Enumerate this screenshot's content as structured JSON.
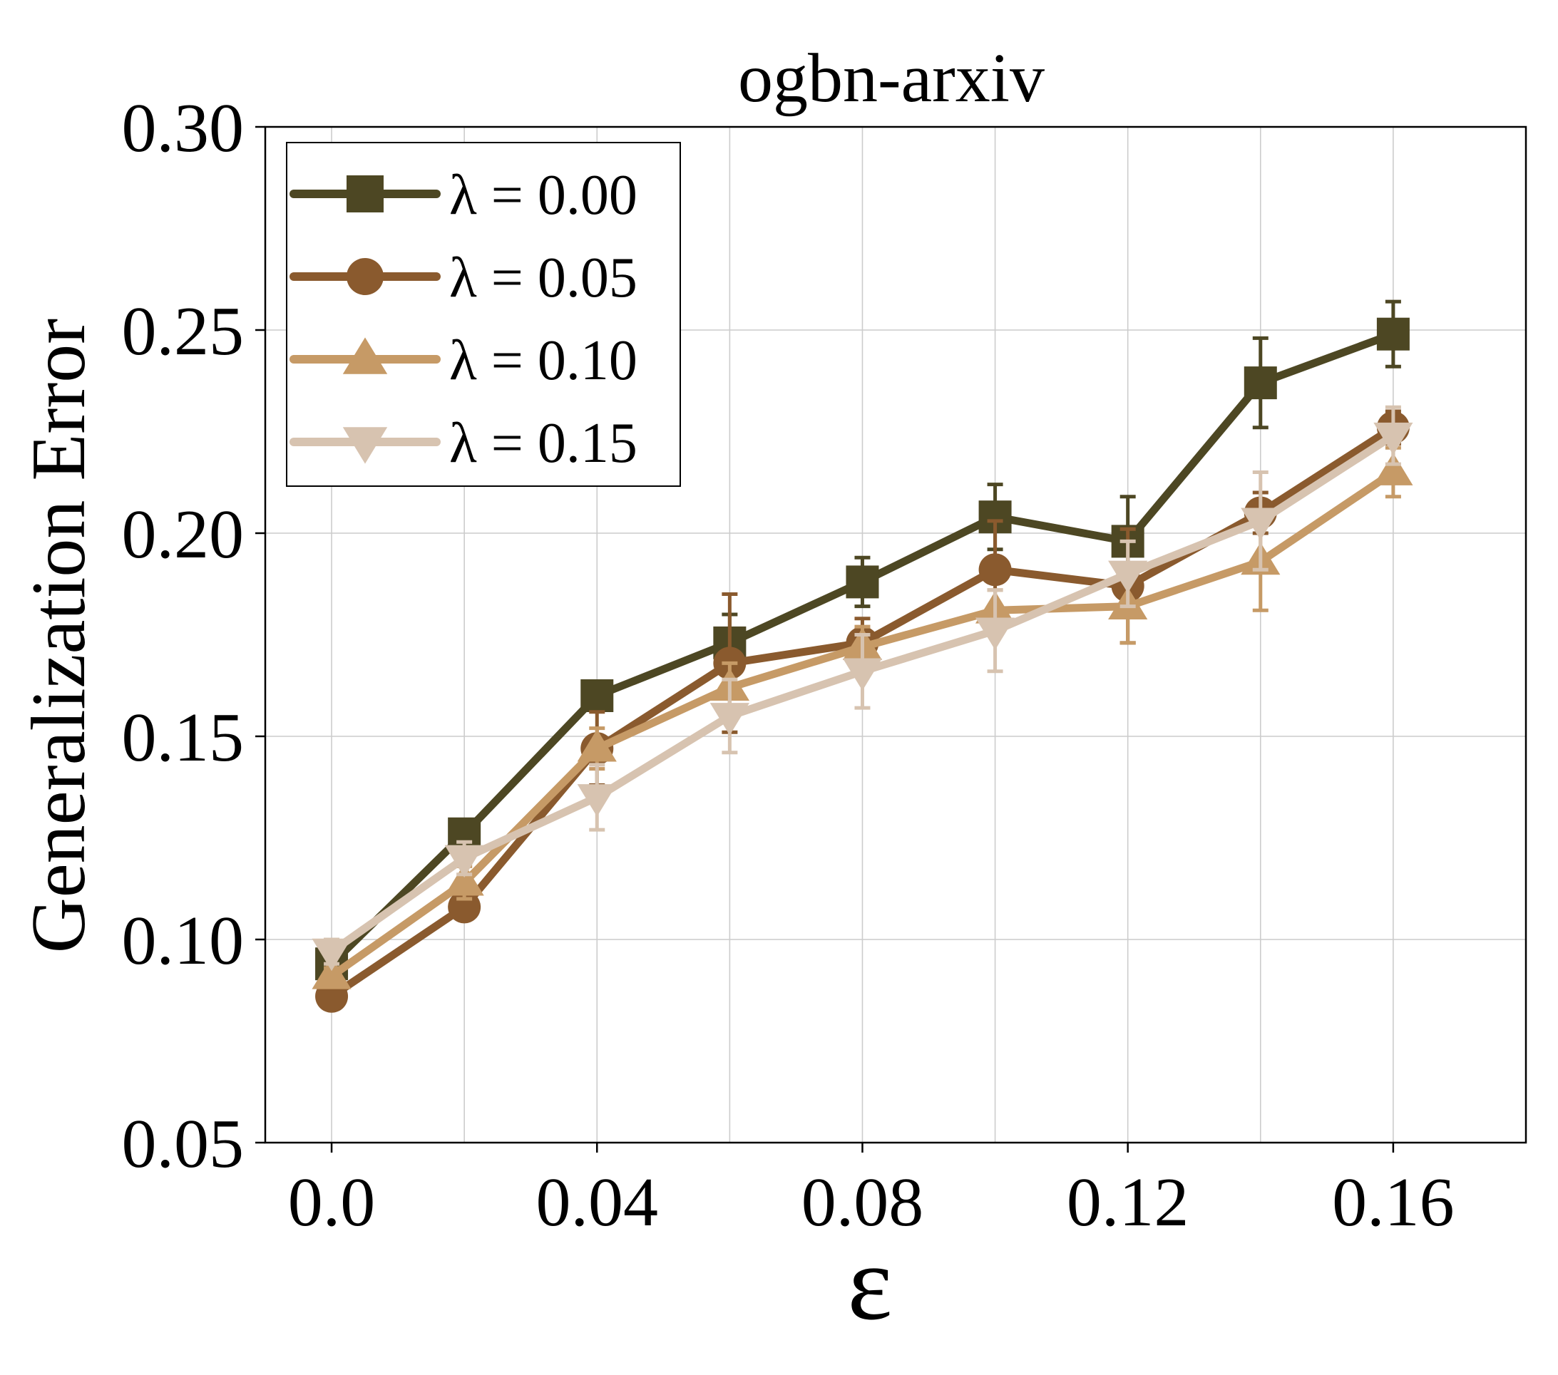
{
  "chart_data": {
    "type": "line",
    "title": "ogbn-arxiv",
    "xlabel": "ε",
    "ylabel": "Generalization Error",
    "xlim": [
      -0.01,
      0.18
    ],
    "ylim": [
      0.05,
      0.3
    ],
    "xticks": [
      0.0,
      0.04,
      0.08,
      0.12,
      0.16
    ],
    "xtick_labels": [
      "0.0",
      "0.04",
      "0.08",
      "0.12",
      "0.16"
    ],
    "xgrid": [
      0.0,
      0.02,
      0.04,
      0.06,
      0.08,
      0.1,
      0.12,
      0.14,
      0.16
    ],
    "yticks": [
      0.05,
      0.1,
      0.15,
      0.2,
      0.25,
      0.3
    ],
    "ytick_labels": [
      "0.05",
      "0.10",
      "0.15",
      "0.20",
      "0.25",
      "0.30"
    ],
    "grid": true,
    "legend_position": "top-left",
    "x": [
      0.0,
      0.02,
      0.04,
      0.06,
      0.08,
      0.1,
      0.12,
      0.14,
      0.16
    ],
    "series": [
      {
        "name": "λ = 0.00",
        "marker": "square",
        "color": "#4d4723",
        "values": [
          0.094,
          0.126,
          0.16,
          0.173,
          0.188,
          0.204,
          0.198,
          0.237,
          0.249
        ],
        "errors": [
          0.002,
          0.003,
          0.003,
          0.007,
          0.006,
          0.008,
          0.011,
          0.011,
          0.008
        ]
      },
      {
        "name": "λ = 0.05",
        "marker": "circle",
        "color": "#8a5a2e",
        "values": [
          0.086,
          0.108,
          0.147,
          0.168,
          0.173,
          0.191,
          0.187,
          0.205,
          0.226
        ],
        "errors": [
          0.002,
          0.002,
          0.009,
          0.017,
          0.006,
          0.012,
          0.014,
          0.005,
          0.004
        ]
      },
      {
        "name": "λ = 0.10",
        "marker": "triangle-up",
        "color": "#c69a66",
        "values": [
          0.091,
          0.114,
          0.147,
          0.162,
          0.172,
          0.181,
          0.182,
          0.193,
          0.215
        ],
        "errors": [
          0.002,
          0.004,
          0.005,
          0.006,
          0.005,
          0.005,
          0.009,
          0.012,
          0.006
        ]
      },
      {
        "name": "λ = 0.15",
        "marker": "triangle-down",
        "color": "#d7c3b0",
        "values": [
          0.097,
          0.12,
          0.135,
          0.155,
          0.166,
          0.176,
          0.19,
          0.203,
          0.224
        ],
        "errors": [
          0.003,
          0.004,
          0.008,
          0.009,
          0.009,
          0.01,
          0.008,
          0.012,
          0.007
        ]
      }
    ]
  }
}
